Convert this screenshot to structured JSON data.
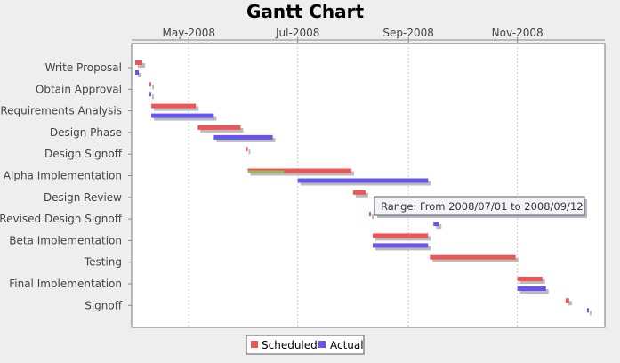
{
  "chart_data": {
    "type": "gantt",
    "title": "Gantt Chart",
    "x_tick_labels": [
      "May-2008",
      "Jul-2008",
      "Sep-2008",
      "Nov-2008"
    ],
    "x_ticks": [
      "2008-05-01",
      "2008-07-01",
      "2008-09-01",
      "2008-11-01"
    ],
    "x_range": [
      "2008-03-30",
      "2008-12-20"
    ],
    "grid": true,
    "legend_position": "bottom",
    "colors": {
      "scheduled": "#ee5555",
      "actual": "#6655ee",
      "shadow": "#bbbbbb",
      "grid": "#cccccc"
    },
    "series": [
      {
        "name": "Scheduled",
        "color": "#ee5555"
      },
      {
        "name": "Actual",
        "color": "#6655ee"
      }
    ],
    "tasks": [
      {
        "name": "Write Proposal",
        "scheduled": [
          "2008-04-01",
          "2008-04-05"
        ],
        "actual": [
          "2008-04-01",
          "2008-04-03"
        ]
      },
      {
        "name": "Obtain Approval",
        "scheduled": [
          "2008-04-09",
          "2008-04-09"
        ],
        "actual": [
          "2008-04-09",
          "2008-04-09"
        ]
      },
      {
        "name": "Requirements Analysis",
        "scheduled": [
          "2008-04-10",
          "2008-05-05"
        ],
        "actual": [
          "2008-04-10",
          "2008-05-15"
        ]
      },
      {
        "name": "Design Phase",
        "scheduled": [
          "2008-05-06",
          "2008-05-30"
        ],
        "actual": [
          "2008-05-15",
          "2008-06-17"
        ]
      },
      {
        "name": "Design Signoff",
        "scheduled": [
          "2008-06-02",
          "2008-06-02"
        ],
        "actual": null
      },
      {
        "name": "Alpha Implementation",
        "scheduled": [
          "2008-06-03",
          "2008-07-31"
        ],
        "actual": [
          "2008-07-01",
          "2008-09-12"
        ],
        "progress": 0.35
      },
      {
        "name": "Design Review",
        "scheduled": [
          "2008-08-01",
          "2008-08-08"
        ],
        "actual": null
      },
      {
        "name": "Revised Design Signoff",
        "scheduled": [
          "2008-08-10",
          "2008-08-10"
        ],
        "actual": [
          "2008-09-15",
          "2008-09-18"
        ]
      },
      {
        "name": "Beta Implementation",
        "scheduled": [
          "2008-08-12",
          "2008-09-12"
        ],
        "actual": [
          "2008-08-12",
          "2008-09-12"
        ]
      },
      {
        "name": "Testing",
        "scheduled": [
          "2008-09-13",
          "2008-10-31"
        ],
        "actual": null
      },
      {
        "name": "Final Implementation",
        "scheduled": [
          "2008-11-01",
          "2008-11-15"
        ],
        "actual": [
          "2008-11-01",
          "2008-11-17"
        ]
      },
      {
        "name": "Signoff",
        "scheduled": [
          "2008-11-28",
          "2008-11-30"
        ],
        "actual": [
          "2008-12-10",
          "2008-12-11"
        ]
      }
    ],
    "legend": [
      "Scheduled",
      "Actual"
    ],
    "tooltip": {
      "text": "Range: From 2008/07/01 to 2008/09/12",
      "task": "Alpha Implementation"
    }
  }
}
